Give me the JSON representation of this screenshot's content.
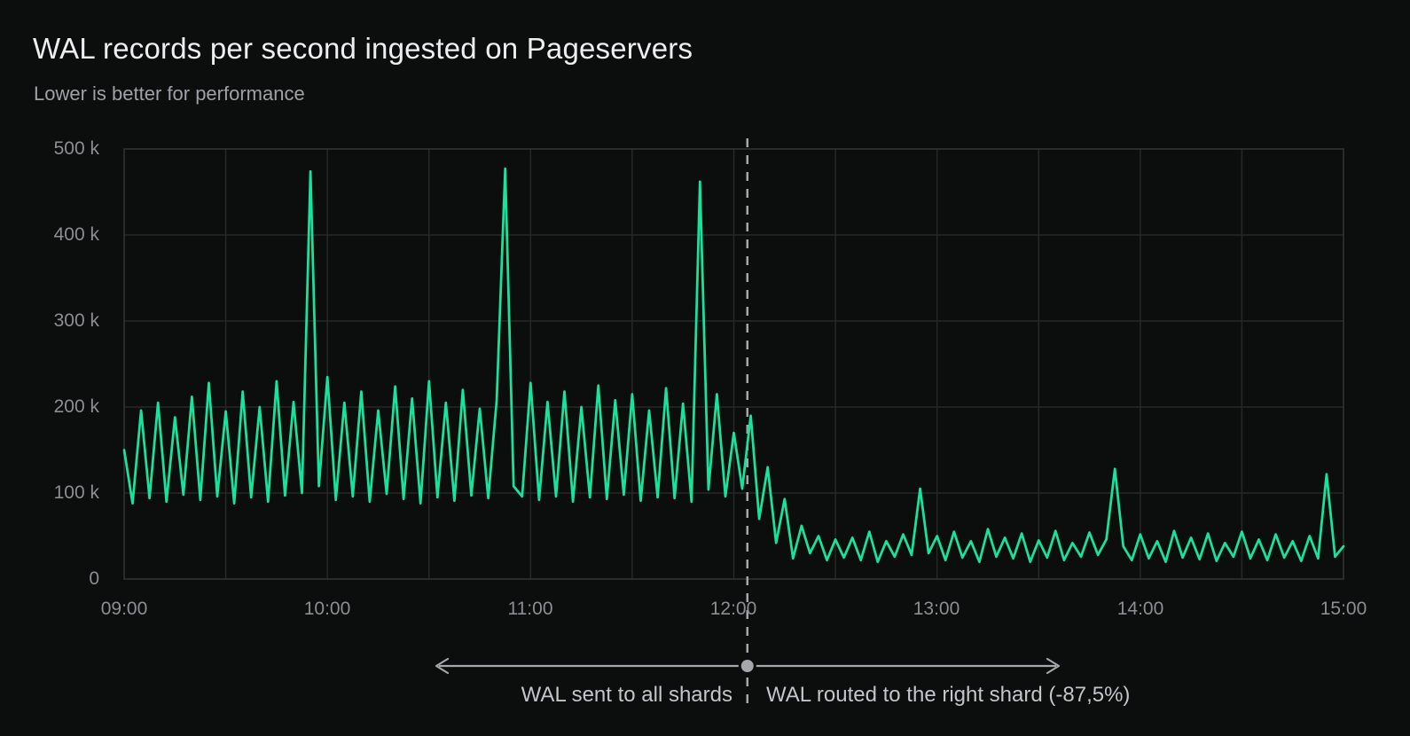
{
  "header": {
    "title": "WAL records per second ingested on Pageservers",
    "subtitle": "Lower is better for performance"
  },
  "colors": {
    "background": "#0c0d0d",
    "series_line": "#17e49c",
    "grid": "#262829",
    "plot_border": "#333537",
    "axis_text": "#8b8e93",
    "title_text": "#eceef0",
    "subtitle_text": "#9ea1a5",
    "annotation_text": "#c2c5c9",
    "annotation_line": "#a4a7ab"
  },
  "chart_data": {
    "type": "line",
    "title": "WAL records per second ingested on Pageservers",
    "subtitle": "Lower is better for performance",
    "grid": true,
    "legend": false,
    "x_axis": {
      "unit": "time of day",
      "tick_labels": [
        "09:00",
        "10:00",
        "11:00",
        "12:00",
        "13:00",
        "14:00",
        "15:00"
      ],
      "tick_minutes": [
        0,
        60,
        120,
        180,
        240,
        300,
        360
      ],
      "gridline_interval_minutes": 30,
      "range_minutes": [
        0,
        360
      ]
    },
    "y_axis": {
      "unit": "WAL records per second",
      "tick_labels": [
        "0",
        "100 k",
        "200 k",
        "300 k",
        "400 k",
        "500 k"
      ],
      "tick_values": [
        0,
        100000,
        200000,
        300000,
        400000,
        500000
      ],
      "range": [
        0,
        500000
      ]
    },
    "series": [
      {
        "name": "WAL records per second",
        "color": "#17e49c",
        "x_unit": "minutes after 09:00",
        "y_unit": "thousand records per second",
        "points": [
          [
            0,
            150
          ],
          [
            2.5,
            88
          ],
          [
            5,
            196
          ],
          [
            7.5,
            94
          ],
          [
            10,
            205
          ],
          [
            12.5,
            90
          ],
          [
            15,
            188
          ],
          [
            17.5,
            98
          ],
          [
            20,
            212
          ],
          [
            22.5,
            92
          ],
          [
            25,
            228
          ],
          [
            27.5,
            96
          ],
          [
            30,
            195
          ],
          [
            32.5,
            88
          ],
          [
            35,
            218
          ],
          [
            37.5,
            95
          ],
          [
            40,
            200
          ],
          [
            42.5,
            90
          ],
          [
            45,
            230
          ],
          [
            47.5,
            97
          ],
          [
            50,
            206
          ],
          [
            52.5,
            100
          ],
          [
            55,
            474
          ],
          [
            57.5,
            108
          ],
          [
            60,
            235
          ],
          [
            62.5,
            92
          ],
          [
            65,
            205
          ],
          [
            67.5,
            96
          ],
          [
            70,
            218
          ],
          [
            72.5,
            90
          ],
          [
            75,
            196
          ],
          [
            77.5,
            99
          ],
          [
            80,
            224
          ],
          [
            82.5,
            93
          ],
          [
            85,
            210
          ],
          [
            87.5,
            88
          ],
          [
            90,
            230
          ],
          [
            92.5,
            95
          ],
          [
            95,
            205
          ],
          [
            97.5,
            91
          ],
          [
            100,
            220
          ],
          [
            102.5,
            97
          ],
          [
            105,
            198
          ],
          [
            107.5,
            94
          ],
          [
            110,
            208
          ],
          [
            112.5,
            477
          ],
          [
            115,
            108
          ],
          [
            117.5,
            96
          ],
          [
            120,
            228
          ],
          [
            122.5,
            92
          ],
          [
            125,
            206
          ],
          [
            127.5,
            96
          ],
          [
            130,
            218
          ],
          [
            132.5,
            90
          ],
          [
            135,
            200
          ],
          [
            137.5,
            95
          ],
          [
            140,
            225
          ],
          [
            142.5,
            93
          ],
          [
            145,
            208
          ],
          [
            147.5,
            98
          ],
          [
            150,
            215
          ],
          [
            152.5,
            91
          ],
          [
            155,
            196
          ],
          [
            157.5,
            95
          ],
          [
            160,
            222
          ],
          [
            162.5,
            94
          ],
          [
            165,
            204
          ],
          [
            167.5,
            90
          ],
          [
            170,
            462
          ],
          [
            172.5,
            104
          ],
          [
            175,
            215
          ],
          [
            177.5,
            96
          ],
          [
            180,
            170
          ],
          [
            182.5,
            105
          ],
          [
            185,
            190
          ],
          [
            187.5,
            70
          ],
          [
            190,
            130
          ],
          [
            192.5,
            42
          ],
          [
            195,
            93
          ],
          [
            197.5,
            24
          ],
          [
            200,
            62
          ],
          [
            202.5,
            30
          ],
          [
            205,
            50
          ],
          [
            207.5,
            22
          ],
          [
            210,
            46
          ],
          [
            212.5,
            25
          ],
          [
            215,
            48
          ],
          [
            217.5,
            22
          ],
          [
            220,
            55
          ],
          [
            222.5,
            20
          ],
          [
            225,
            44
          ],
          [
            227.5,
            26
          ],
          [
            230,
            52
          ],
          [
            232.5,
            28
          ],
          [
            235,
            105
          ],
          [
            237.5,
            30
          ],
          [
            240,
            50
          ],
          [
            242.5,
            22
          ],
          [
            245,
            55
          ],
          [
            247.5,
            25
          ],
          [
            250,
            44
          ],
          [
            252.5,
            20
          ],
          [
            255,
            58
          ],
          [
            257.5,
            26
          ],
          [
            260,
            48
          ],
          [
            262.5,
            24
          ],
          [
            265,
            53
          ],
          [
            267.5,
            20
          ],
          [
            270,
            45
          ],
          [
            272.5,
            25
          ],
          [
            275,
            56
          ],
          [
            277.5,
            22
          ],
          [
            280,
            42
          ],
          [
            282.5,
            26
          ],
          [
            285,
            54
          ],
          [
            287.5,
            28
          ],
          [
            290,
            46
          ],
          [
            292.5,
            128
          ],
          [
            295,
            38
          ],
          [
            297.5,
            22
          ],
          [
            300,
            52
          ],
          [
            302.5,
            24
          ],
          [
            305,
            44
          ],
          [
            307.5,
            20
          ],
          [
            310,
            56
          ],
          [
            312.5,
            25
          ],
          [
            315,
            48
          ],
          [
            317.5,
            23
          ],
          [
            320,
            53
          ],
          [
            322.5,
            21
          ],
          [
            325,
            42
          ],
          [
            327.5,
            26
          ],
          [
            330,
            55
          ],
          [
            332.5,
            24
          ],
          [
            335,
            46
          ],
          [
            337.5,
            22
          ],
          [
            340,
            52
          ],
          [
            342.5,
            25
          ],
          [
            345,
            44
          ],
          [
            347.5,
            21
          ],
          [
            350,
            50
          ],
          [
            352.5,
            24
          ],
          [
            355,
            122
          ],
          [
            357.5,
            26
          ],
          [
            360,
            38
          ]
        ]
      }
    ],
    "annotations": {
      "divider_minutes": 184,
      "left_label": "WAL sent to all shards",
      "right_label": "WAL routed to the right shard (-87,5%)"
    }
  }
}
